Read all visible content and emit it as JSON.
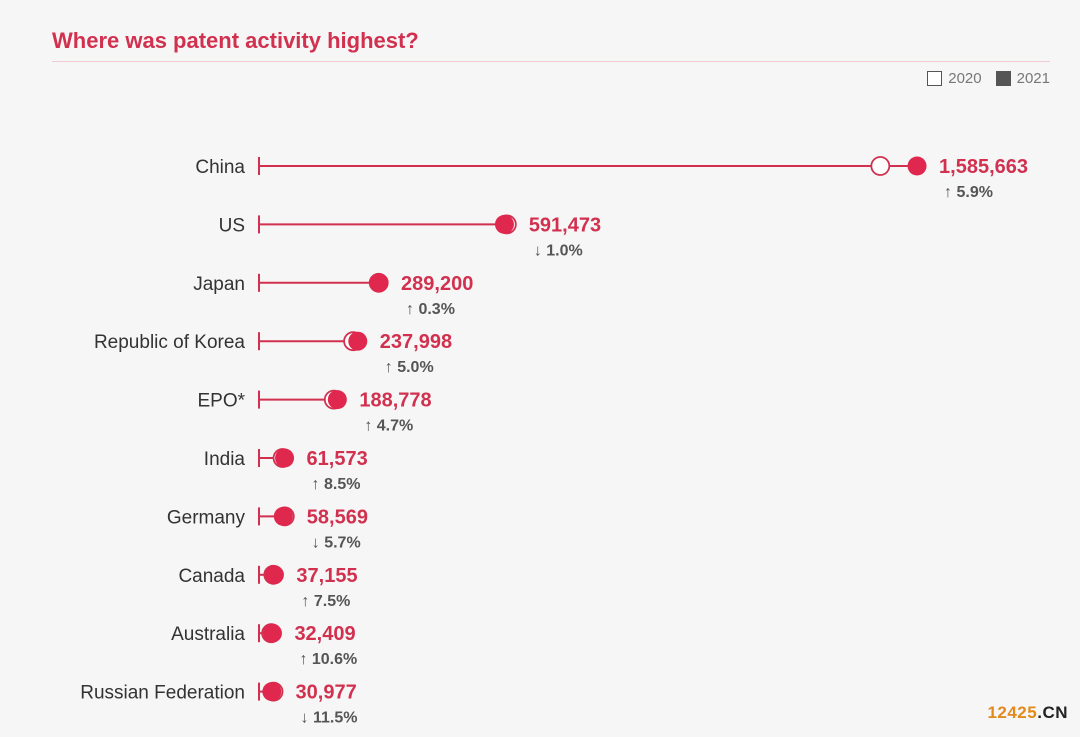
{
  "title": "Where was patent activity highest?",
  "legend": {
    "y2020": "2020",
    "y2021": "2021"
  },
  "colors": {
    "accent": "#d1314f",
    "marker2021": "#e0284f",
    "text": "#333333",
    "muted": "#555555"
  },
  "watermark": {
    "part1": "12425",
    "part2": ".CN"
  },
  "chart_data": {
    "type": "dot",
    "title": "Where was patent activity highest?",
    "series": [
      {
        "name": "2020",
        "marker": "hollow circle"
      },
      {
        "name": "2021",
        "marker": "filled circle"
      }
    ],
    "legend_position": "top-right",
    "grid": false,
    "xlim": [
      0,
      1800000
    ],
    "rows": [
      {
        "category": "China",
        "value_2021": 1585663,
        "value_2021_label": "1,585,663",
        "value_2020": 1497159,
        "change_label": "5.9%",
        "direction": "up"
      },
      {
        "category": "US",
        "value_2021": 591473,
        "value_2021_label": "591,473",
        "value_2020": 597172,
        "change_label": "1.0%",
        "direction": "down"
      },
      {
        "category": "Japan",
        "value_2021": 289200,
        "value_2021_label": "289,200",
        "value_2020": 288472,
        "change_label": "0.3%",
        "direction": "up"
      },
      {
        "category": "Republic of Korea",
        "value_2021": 237998,
        "value_2021_label": "237,998",
        "value_2020": 226759,
        "change_label": "5.0%",
        "direction": "up"
      },
      {
        "category": "EPO*",
        "value_2021": 188778,
        "value_2021_label": "188,778",
        "value_2020": 180250,
        "change_label": "4.7%",
        "direction": "up"
      },
      {
        "category": "India",
        "value_2021": 61573,
        "value_2021_label": "61,573",
        "value_2020": 56771,
        "change_label": "8.5%",
        "direction": "up"
      },
      {
        "category": "Germany",
        "value_2021": 58569,
        "value_2021_label": "58,569",
        "value_2020": 62105,
        "change_label": "5.7%",
        "direction": "down"
      },
      {
        "category": "Canada",
        "value_2021": 37155,
        "value_2021_label": "37,155",
        "value_2020": 34565,
        "change_label": "7.5%",
        "direction": "up"
      },
      {
        "category": "Australia",
        "value_2021": 32409,
        "value_2021_label": "32,409",
        "value_2020": 29294,
        "change_label": "10.6%",
        "direction": "up"
      },
      {
        "category": "Russian Federation",
        "value_2021": 30977,
        "value_2021_label": "30,977",
        "value_2020": 34984,
        "change_label": "11.5%",
        "direction": "down"
      }
    ]
  }
}
